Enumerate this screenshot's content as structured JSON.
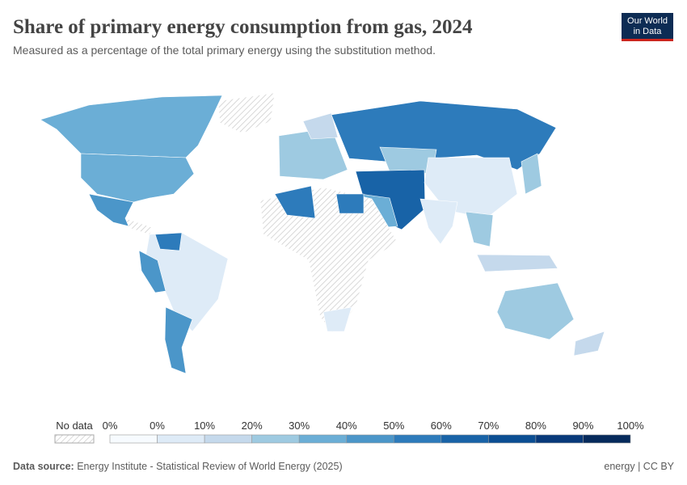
{
  "header": {
    "title": "Share of primary energy consumption from gas, 2024",
    "subtitle": "Measured as a percentage of the total primary energy using the substitution method.",
    "logo": [
      "Our World",
      "in Data"
    ]
  },
  "legend": {
    "no_data": "No data",
    "labels": [
      "0%",
      "0%",
      "10%",
      "20%",
      "30%",
      "40%",
      "50%",
      "60%",
      "70%",
      "80%",
      "90%",
      "100%"
    ],
    "colors": [
      "#f7fbff",
      "#deebf7",
      "#c5d9ec",
      "#9ecae1",
      "#6baed6",
      "#4b96c9",
      "#2d7bbb",
      "#1863a7",
      "#0b4e93",
      "#08397a",
      "#062a5c"
    ]
  },
  "footer": {
    "source_label": "Data source:",
    "source": "Energy Institute - Statistical Review of World Energy (2025)",
    "license": "energy | CC BY"
  }
}
